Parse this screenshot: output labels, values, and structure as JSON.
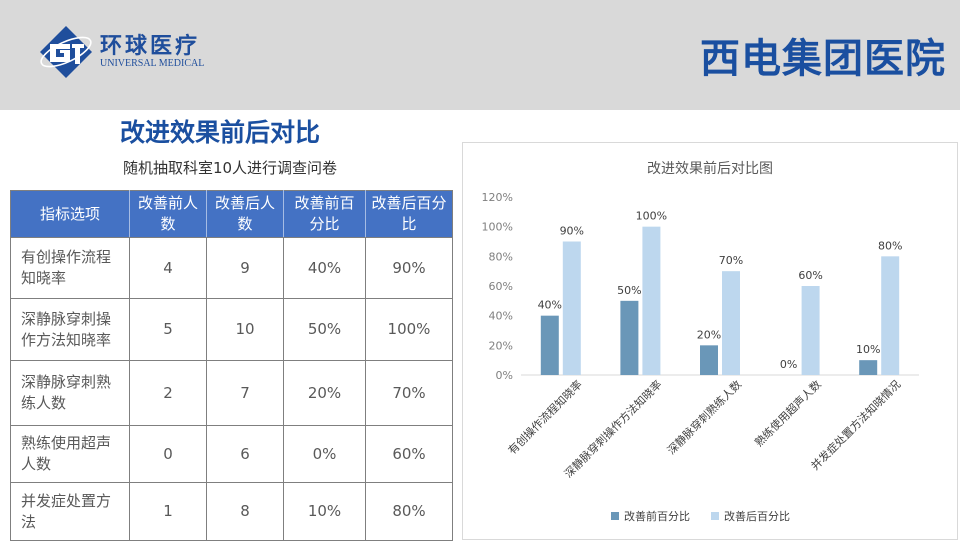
{
  "header": {
    "logo_cn": "环球医疗",
    "logo_en": "UNIVERSAL MEDICAL",
    "hospital_name": "西电集团医院"
  },
  "page_title": "改进效果前后对比",
  "table": {
    "caption": "随机抽取科室10人进行调查问卷",
    "headers": [
      "指标选项",
      "改善前人数",
      "改善后人数",
      "改善前百分比",
      "改善后百分比"
    ],
    "rows": [
      [
        "有创操作流程知晓率",
        "4",
        "9",
        "40%",
        "90%"
      ],
      [
        "深静脉穿刺操作方法知晓率",
        "5",
        "10",
        "50%",
        "100%"
      ],
      [
        "深静脉穿刺熟练人数",
        "2",
        "7",
        "20%",
        "70%"
      ],
      [
        "熟练使用超声人数",
        "0",
        "6",
        "0%",
        "60%"
      ],
      [
        "并发症处置方法",
        "1",
        "8",
        "10%",
        "80%"
      ]
    ]
  },
  "chart_data": {
    "type": "bar",
    "title": "改进效果前后对比图",
    "categories": [
      "有创操作流程知晓率",
      "深静脉穿刺操作方法知晓率",
      "深静脉穿刺熟练人数",
      "熟练使用超声人数",
      "并发症处置方法知晓情况"
    ],
    "series": [
      {
        "name": "改善前百分比",
        "values": [
          40,
          50,
          20,
          0,
          10
        ],
        "color": "#6a97b8"
      },
      {
        "name": "改善后百分比",
        "values": [
          90,
          100,
          70,
          60,
          80
        ],
        "color": "#bdd7ee"
      }
    ],
    "ylim": [
      0,
      120
    ],
    "yticks": [
      0,
      20,
      40,
      60,
      80,
      100,
      120
    ],
    "value_format": "percent",
    "grid": false,
    "legend_position": "bottom",
    "xlabel": "",
    "ylabel": ""
  }
}
